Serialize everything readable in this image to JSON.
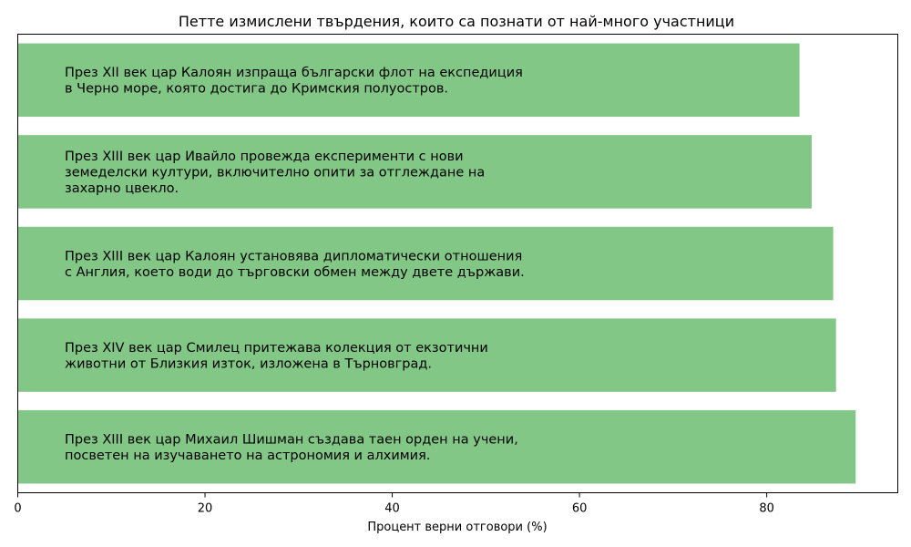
{
  "chart_data": {
    "type": "bar",
    "orientation": "horizontal",
    "title": "Петте измислени твърдения, които са познати от най-много участници",
    "xlabel": "Процент верни отговори (%)",
    "ylabel": "",
    "xlim": [
      0,
      94
    ],
    "xticks": [
      "0",
      "20",
      "40",
      "60",
      "80"
    ],
    "grid": false,
    "bar_color": "#82c785",
    "categories": [
      [
        "През XII век цар Калоян изпраща български флот на експедиция",
        "в Черно море, която достига до Кримския полуостров."
      ],
      [
        "През XIII век цар Ивайло провежда експерименти с нови",
        "земеделски култури, включително опити за отглеждане на",
        "захарно цвекло."
      ],
      [
        "През XIII век цар Калоян установява дипломатически отношения",
        "с Англия, което води до търговски обмен между двете държави."
      ],
      [
        "През XIV век цар Смилец притежава колекция от екзотични",
        "животни от Близкия изток, изложена в Търновград."
      ],
      [
        "През XIII век цар Михаил Шишман създава таен орден на учени,",
        "посветен на изучаването на астрономия и алхимия."
      ]
    ],
    "values": [
      83.5,
      84.8,
      87.1,
      87.4,
      89.5
    ]
  }
}
